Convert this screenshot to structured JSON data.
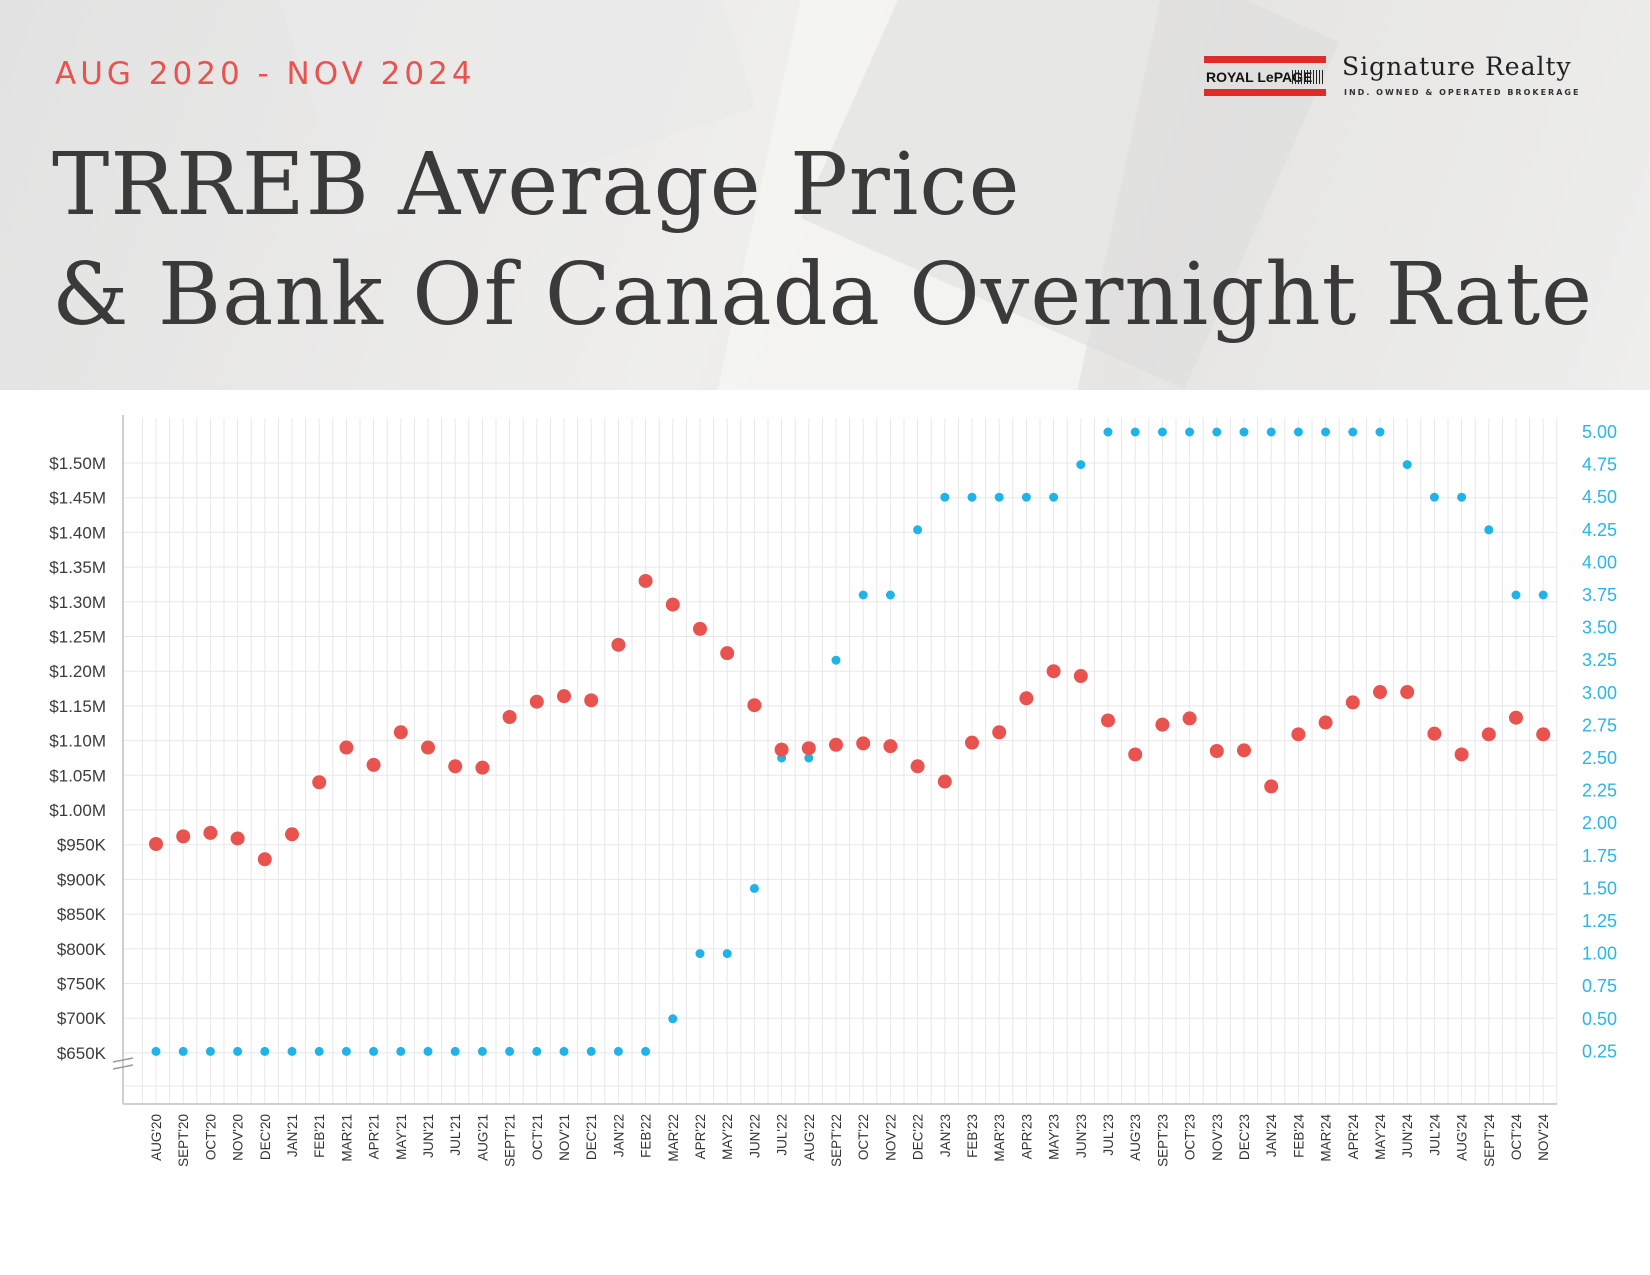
{
  "header": {
    "date_range": "AUG 2020 - NOV 2024",
    "title_line1": "TRREB Average Price",
    "title_line2": "& Bank Of Canada Overnight Rate"
  },
  "brand": {
    "logo_text": "ROYAL LePAGE",
    "name": "Signature Realty",
    "tagline": "IND. OWNED & OPERATED BROKERAGE"
  },
  "colors": {
    "price": "#e8534f",
    "rate": "#1fb3e8",
    "grid": "#e8e8e8",
    "axis": "#cfcfcf"
  },
  "chart_data": {
    "type": "scatter",
    "categories": [
      "AUG'20",
      "SEPT'20",
      "OCT'20",
      "NOV'20",
      "DEC'20",
      "JAN'21",
      "FEB'21",
      "MAR'21",
      "APR'21",
      "MAY'21",
      "JUN'21",
      "JUL'21",
      "AUG'21",
      "SEPT'21",
      "OCT'21",
      "NOV'21",
      "DEC'21",
      "JAN'22",
      "FEB'22",
      "MAR'22",
      "APR'22",
      "MAY'22",
      "JUN'22",
      "JUL'22",
      "AUG'22",
      "SEPT'22",
      "OCT'22",
      "NOV'22",
      "DEC'22",
      "JAN'23",
      "FEB'23",
      "MAR'23",
      "APR'23",
      "MAY'23",
      "JUN'23",
      "JUL'23",
      "AUG'23",
      "SEPT'23",
      "OCT'23",
      "NOV'23",
      "DEC'23",
      "JAN'24",
      "FEB'24",
      "MAR'24",
      "APR'24",
      "MAY'24",
      "JUN'24",
      "JUL'24",
      "AUG'24",
      "SEPT'24",
      "OCT'24",
      "NOV'24"
    ],
    "left_axis": {
      "ticks": [
        650,
        700,
        750,
        800,
        850,
        900,
        950,
        1000,
        1050,
        1100,
        1150,
        1200,
        1250,
        1300,
        1350,
        1400,
        1450,
        1500
      ],
      "tick_labels": [
        "$650K",
        "$700K",
        "$750K",
        "$800K",
        "$850K",
        "$900K",
        "$950K",
        "$1.00M",
        "$1.05M",
        "$1.10M",
        "$1.15M",
        "$1.20M",
        "$1.25M",
        "$1.30M",
        "$1.35M",
        "$1.40M",
        "$1.45M",
        "$1.50M"
      ],
      "units": "thousands CAD",
      "axis_break_below": 650
    },
    "right_axis": {
      "ticks": [
        0.25,
        0.5,
        0.75,
        1.0,
        1.25,
        1.5,
        1.75,
        2.0,
        2.25,
        2.5,
        2.75,
        3.0,
        3.25,
        3.5,
        3.75,
        4.0,
        4.25,
        4.5,
        4.75,
        5.0
      ],
      "tick_labels": [
        "0.25",
        "0.50",
        "0.75",
        "1.00",
        "1.25",
        "1.50",
        "1.75",
        "2.00",
        "2.25",
        "2.50",
        "2.75",
        "3.00",
        "3.25",
        "3.50",
        "3.75",
        "4.00",
        "4.25",
        "4.50",
        "4.75",
        "5.00"
      ]
    },
    "series": [
      {
        "axis": "left",
        "values": [
          951,
          962,
          967,
          959,
          929,
          965,
          1040,
          1090,
          1065,
          1112,
          1090,
          1063,
          1061,
          1134,
          1156,
          1164,
          1158,
          1238,
          1330,
          1296,
          1261,
          1226,
          1151,
          1087,
          1089,
          1094,
          1096,
          1092,
          1063,
          1041,
          1097,
          1112,
          1161,
          1200,
          1193,
          1129,
          1080,
          1123,
          1132,
          1085,
          1086,
          1034,
          1109,
          1126,
          1155,
          1170,
          1170,
          1110,
          1080,
          1109,
          1133,
          1109
        ]
      },
      {
        "axis": "right",
        "values": [
          0.25,
          0.25,
          0.25,
          0.25,
          0.25,
          0.25,
          0.25,
          0.25,
          0.25,
          0.25,
          0.25,
          0.25,
          0.25,
          0.25,
          0.25,
          0.25,
          0.25,
          0.25,
          0.25,
          0.5,
          1.0,
          1.0,
          1.5,
          2.5,
          2.5,
          3.25,
          3.75,
          3.75,
          4.25,
          4.5,
          4.5,
          4.5,
          4.5,
          4.5,
          4.75,
          5.0,
          5.0,
          5.0,
          5.0,
          5.0,
          5.0,
          5.0,
          5.0,
          5.0,
          5.0,
          5.0,
          4.75,
          4.5,
          4.5,
          4.25,
          3.75,
          3.75
        ]
      }
    ]
  }
}
